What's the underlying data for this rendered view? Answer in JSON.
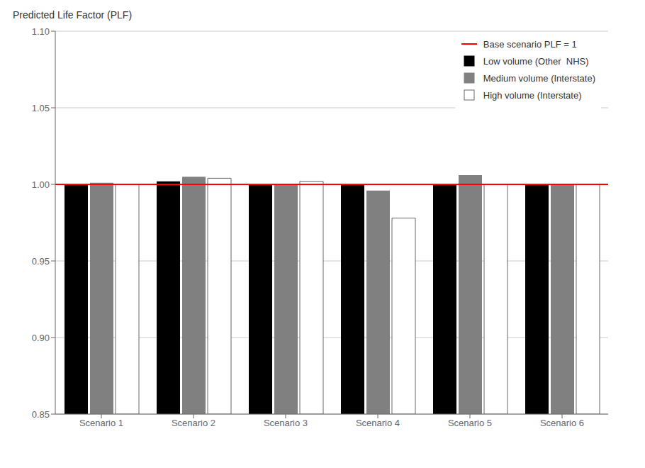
{
  "chart_data": {
    "type": "bar",
    "ylabel": "Predicted Life Factor (PLF)",
    "categories": [
      "Scenario 1",
      "Scenario 2",
      "Scenario 3",
      "Scenario 4",
      "Scenario 5",
      "Scenario 6"
    ],
    "series": [
      {
        "name": "Low volume (Other  NHS)",
        "color": "#000000",
        "values": [
          1.0,
          1.002,
          1.0,
          1.0,
          1.0,
          1.0
        ]
      },
      {
        "name": "Medium volume (Interstate)",
        "color": "#808080",
        "values": [
          1.001,
          1.005,
          1.0,
          0.996,
          1.006,
          1.0
        ]
      },
      {
        "name": "High volume (Interstate)",
        "color": "#ffffff",
        "values": [
          1.0,
          1.004,
          1.002,
          0.978,
          1.0,
          1.0
        ]
      }
    ],
    "annotations": [
      {
        "type": "hline",
        "y": 1.0,
        "label": "Base scenario PLF = 1",
        "color": "#ff0000"
      }
    ],
    "ylim": [
      0.85,
      1.1
    ],
    "yticks": [
      0.85,
      {
        "value": 0.9,
        "label": "0.90"
      },
      0.95,
      {
        "value": 1.0,
        "label": "1.00"
      },
      1.05,
      {
        "value": 1.1,
        "label": "1.10"
      }
    ],
    "grid": true,
    "legend": "upper right"
  }
}
